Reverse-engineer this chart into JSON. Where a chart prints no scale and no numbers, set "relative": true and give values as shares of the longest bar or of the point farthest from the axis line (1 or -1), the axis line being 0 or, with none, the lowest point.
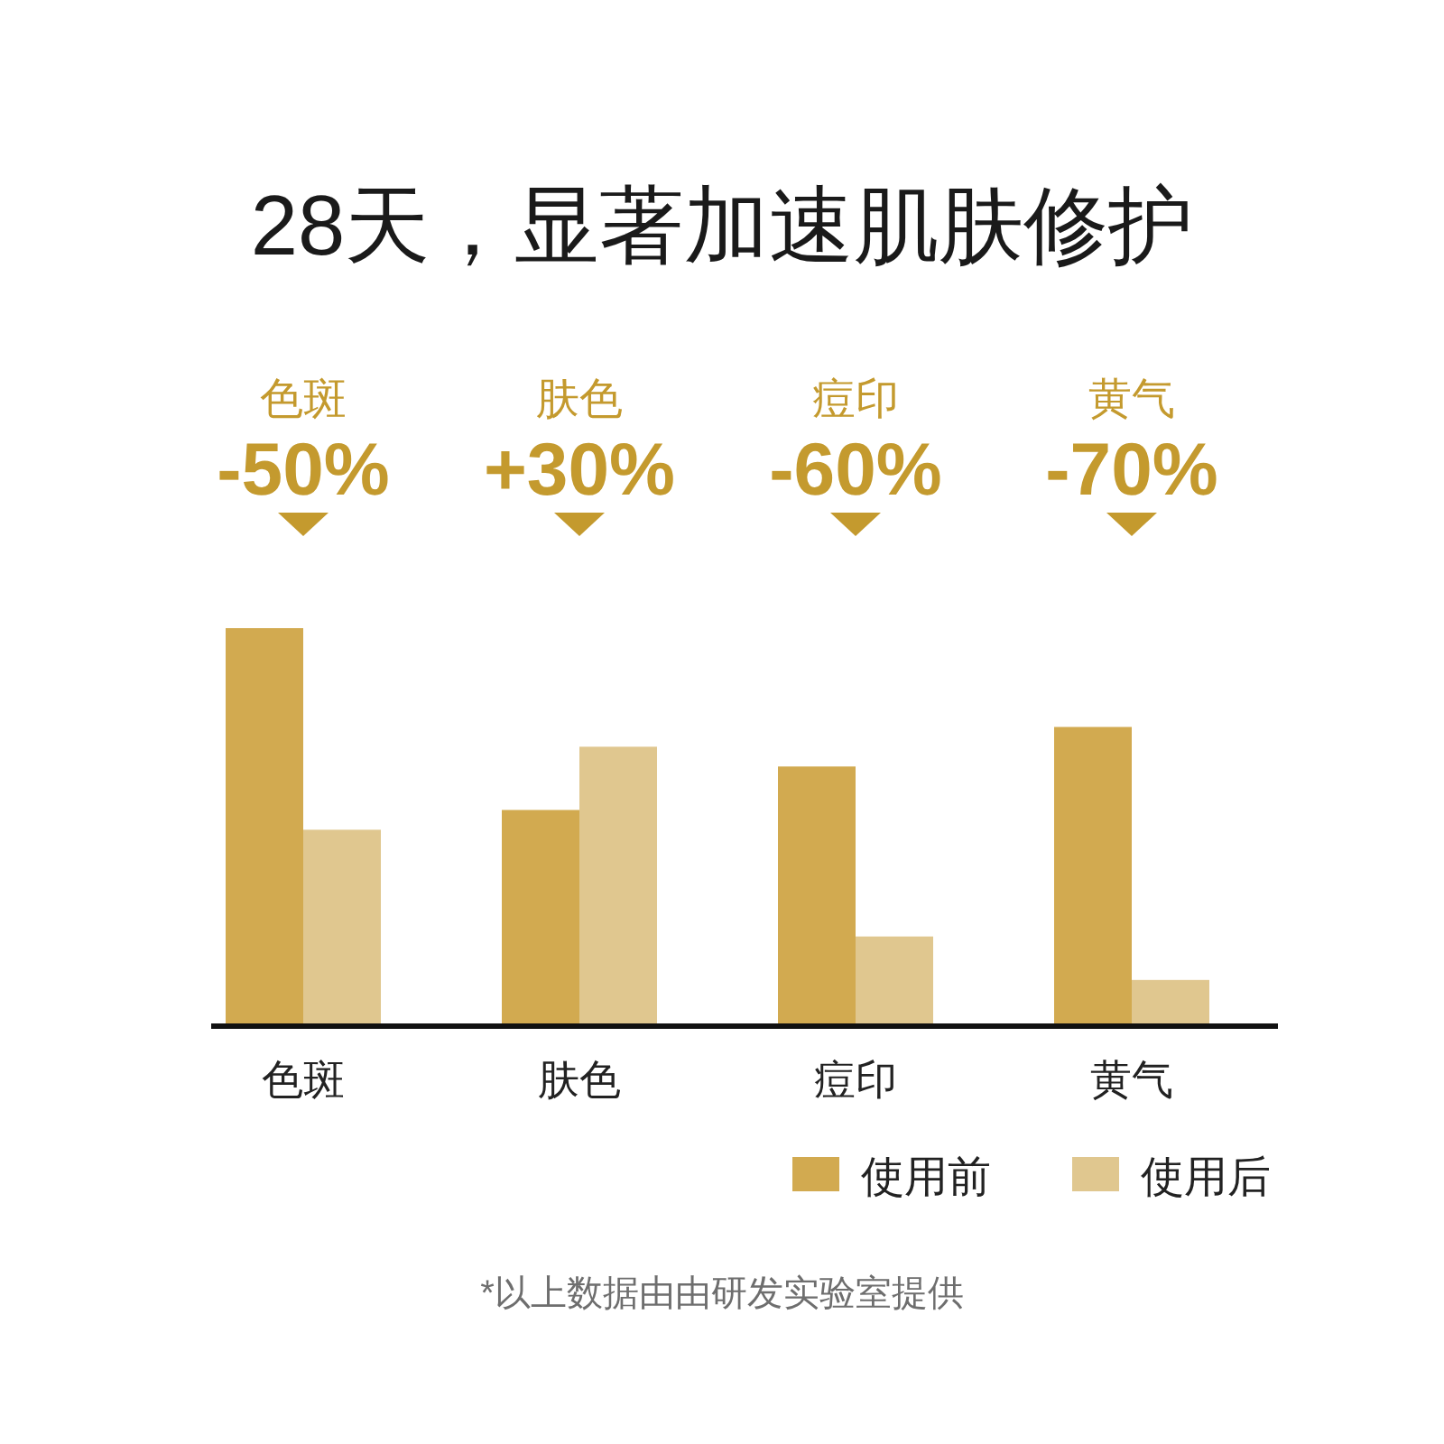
{
  "chart_data": {
    "type": "bar",
    "title": "28天，显著加速肌肤修护",
    "relative": true,
    "categories": [
      "色斑",
      "肤色",
      "痘印",
      "黄气"
    ],
    "series": [
      {
        "name": "使用前",
        "color": "#d2aa50",
        "values": [
          1,
          0.54,
          0.65,
          0.75
        ]
      },
      {
        "name": "使用后",
        "color": "#e0c78f",
        "values": [
          0.49,
          0.7,
          0.22,
          0.11
        ]
      }
    ],
    "annotations": [
      "色斑",
      "-50%",
      "肤色",
      "+30%",
      "痘印",
      "-60%",
      "黄气",
      "-70%",
      "*以上数据由由研发实验室提供"
    ],
    "legend": "bottom right"
  }
}
